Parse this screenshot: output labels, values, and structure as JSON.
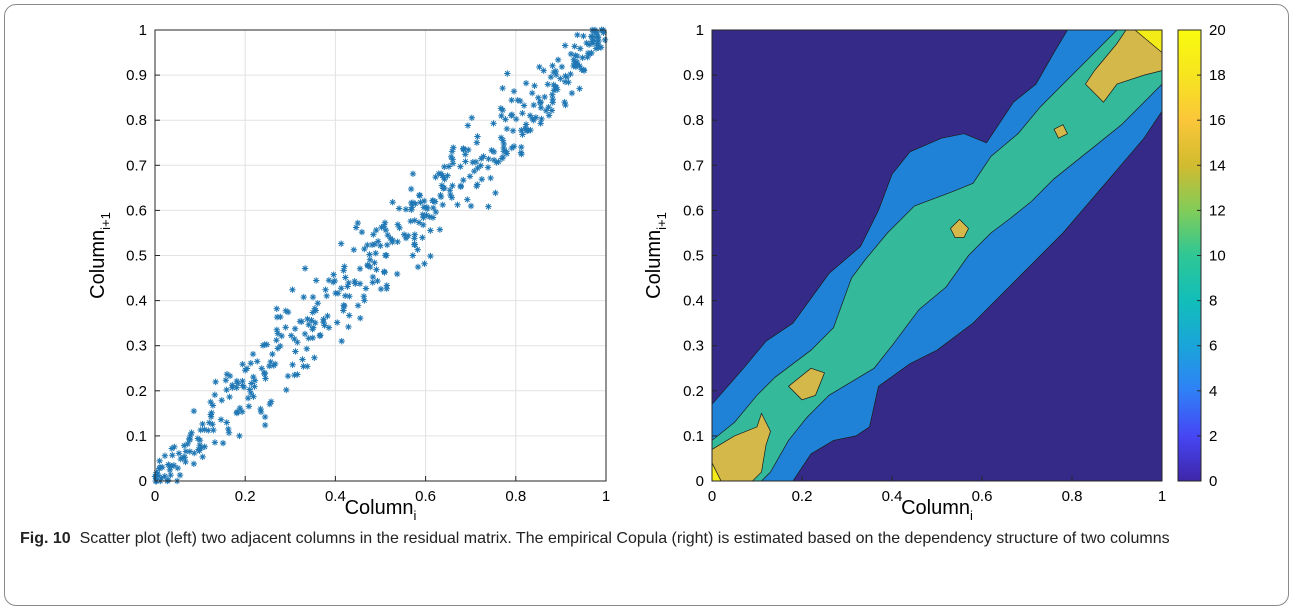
{
  "chart_data": [
    {
      "type": "scatter",
      "marker": "asterisk",
      "marker_color": "#1f77b4",
      "xlabel": "Column",
      "xlabel_sub": "i",
      "ylabel": "Column",
      "ylabel_sub": "i+1",
      "xlim": [
        0,
        1
      ],
      "ylim": [
        0,
        1
      ],
      "grid": true,
      "xticks": [
        "0",
        "0.2",
        "0.4",
        "0.6",
        "0.8",
        "1"
      ],
      "yticks": [
        "0",
        "0.1",
        "0.2",
        "0.3",
        "0.4",
        "0.5",
        "0.6",
        "0.7",
        "0.8",
        "0.9",
        "1"
      ],
      "points_note": "approx. 500 points concentrated along the diagonal"
    },
    {
      "type": "heatmap",
      "style": "filled-contour",
      "xlabel": "Column",
      "xlabel_sub": "i",
      "ylabel": "Column",
      "ylabel_sub": "i+1",
      "xlim": [
        0,
        1
      ],
      "ylim": [
        0,
        1
      ],
      "xticks": [
        "0",
        "0.2",
        "0.4",
        "0.6",
        "0.8",
        "1"
      ],
      "yticks": [
        "0",
        "0.1",
        "0.2",
        "0.3",
        "0.4",
        "0.5",
        "0.6",
        "0.7",
        "0.8",
        "0.9",
        "1"
      ],
      "colorbar": {
        "range": [
          0,
          20
        ],
        "ticks": [
          "0",
          "2",
          "4",
          "6",
          "8",
          "10",
          "12",
          "14",
          "16",
          "18",
          "20"
        ],
        "colormap": [
          "#3e26a8",
          "#4646f4",
          "#2f80f7",
          "#1aa5da",
          "#12beb9",
          "#2ec795",
          "#81cc59",
          "#d1bb2f",
          "#fbc63a",
          "#f6e51f",
          "#f9fb0e"
        ]
      },
      "levels": [
        {
          "min": 0,
          "max": 5,
          "color": "#352a87"
        },
        {
          "min": 5,
          "max": 10,
          "color": "#1f82d7"
        },
        {
          "min": 10,
          "max": 15,
          "color": "#34b99a"
        },
        {
          "min": 15,
          "max": 20,
          "color": "#d5b84a"
        },
        {
          "min": 20,
          "max": 25,
          "color": "#f3ec16"
        }
      ]
    }
  ],
  "caption": {
    "label": "Fig. 10",
    "text": "Scatter plot (left) two adjacent columns in the residual matrix. The empirical Copula (right) is estimated based on the dependency structure of two columns"
  }
}
